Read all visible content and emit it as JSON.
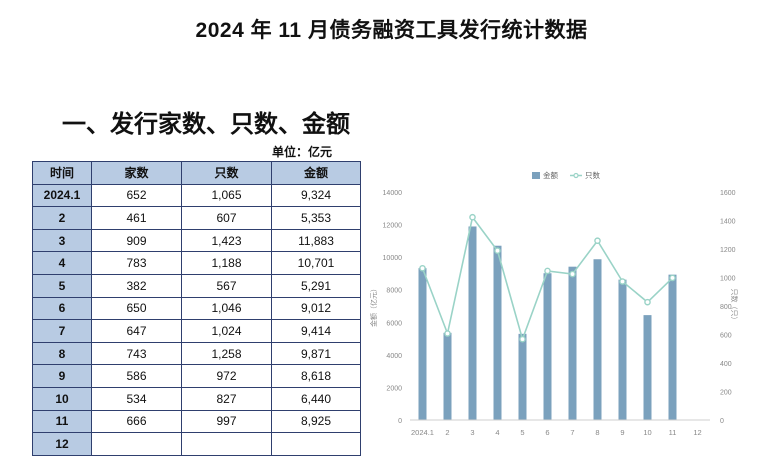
{
  "document": {
    "title": "2024 年 11 月债务融资工具发行统计数据",
    "section_title": "一、发行家数、只数、金额",
    "unit_label": "单位：亿元"
  },
  "table": {
    "headers": [
      "时间",
      "家数",
      "只数",
      "金额"
    ],
    "rows": [
      {
        "time": "2024.1",
        "jia": "652",
        "zhi": "1,065",
        "jin": "9,324"
      },
      {
        "time": "2",
        "jia": "461",
        "zhi": "607",
        "jin": "5,353"
      },
      {
        "time": "3",
        "jia": "909",
        "zhi": "1,423",
        "jin": "11,883"
      },
      {
        "time": "4",
        "jia": "783",
        "zhi": "1,188",
        "jin": "10,701"
      },
      {
        "time": "5",
        "jia": "382",
        "zhi": "567",
        "jin": "5,291"
      },
      {
        "time": "6",
        "jia": "650",
        "zhi": "1,046",
        "jin": "9,012"
      },
      {
        "time": "7",
        "jia": "647",
        "zhi": "1,024",
        "jin": "9,414"
      },
      {
        "time": "8",
        "jia": "743",
        "zhi": "1,258",
        "jin": "9,871"
      },
      {
        "time": "9",
        "jia": "586",
        "zhi": "972",
        "jin": "8,618"
      },
      {
        "time": "10",
        "jia": "534",
        "zhi": "827",
        "jin": "6,440"
      },
      {
        "time": "11",
        "jia": "666",
        "zhi": "997",
        "jin": "8,925"
      },
      {
        "time": "12",
        "jia": "",
        "zhi": "",
        "jin": ""
      }
    ]
  },
  "chart_data": {
    "type": "bar",
    "categories": [
      "2024.1",
      "2",
      "3",
      "4",
      "5",
      "6",
      "7",
      "8",
      "9",
      "10",
      "11",
      "12"
    ],
    "series": [
      {
        "name": "金额",
        "type": "bar",
        "axis": "left",
        "color": "#7ba1bd",
        "values": [
          9324,
          5353,
          11883,
          10701,
          5291,
          9012,
          9414,
          9871,
          8618,
          6440,
          8925,
          null
        ]
      },
      {
        "name": "只数",
        "type": "line",
        "axis": "right",
        "color": "#9ad3c7",
        "values": [
          1065,
          607,
          1423,
          1188,
          567,
          1046,
          1024,
          1258,
          972,
          827,
          997,
          null
        ]
      }
    ],
    "ylabel_left": "金额（亿元）",
    "ylabel_right": "只数（只）",
    "ylim_left": [
      0,
      14000
    ],
    "yticks_left": [
      "0",
      "2000",
      "4000",
      "6000",
      "8000",
      "10000",
      "12000",
      "14000"
    ],
    "ylim_right": [
      0,
      1600
    ],
    "yticks_right": [
      "0",
      "200",
      "400",
      "600",
      "800",
      "1000",
      "1200",
      "1400",
      "1600"
    ],
    "legend_position": "top-center",
    "grid": false
  }
}
